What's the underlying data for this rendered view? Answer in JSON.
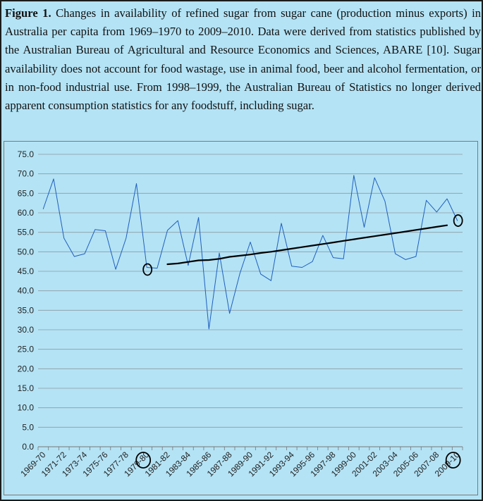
{
  "caption": {
    "label": "Figure 1.",
    "text": "Changes in availability of refined sugar from sugar cane (production minus exports) in Australia per capita from 1969–1970 to 2009–2010. Data were derived from statistics published by the Australian Bureau of Agricultural and Resource Economics and Sciences, ABARE [10]. Sugar availability does not account for food wastage, use in animal food, beer and alcohol fermentation, or in non-food industrial use. From 1998–1999, the Australian Bureau of Statistics no longer derived apparent consumption statistics for any foodstuff, including sugar."
  },
  "chart_data": {
    "type": "line",
    "title": "",
    "xlabel": "",
    "ylabel": "",
    "ylim": [
      0,
      75
    ],
    "y_ticks": [
      "0.0",
      "5.0",
      "10.0",
      "15.0",
      "20.0",
      "25.0",
      "30.0",
      "35.0",
      "40.0",
      "45.0",
      "50.0",
      "55.0",
      "60.0",
      "65.0",
      "70.0",
      "75.0"
    ],
    "grid": true,
    "x": [
      "1969-70",
      "1970-71",
      "1971-72",
      "1972-73",
      "1973-74",
      "1974-75",
      "1975-76",
      "1976-77",
      "1977-78",
      "1978-79",
      "1979-80",
      "1980-81",
      "1981-82",
      "1982-83",
      "1983-84",
      "1984-85",
      "1985-86",
      "1986-87",
      "1987-88",
      "1988-89",
      "1989-90",
      "1990-91",
      "1991-92",
      "1992-93",
      "1993-94",
      "1994-95",
      "1995-96",
      "1996-97",
      "1997-98",
      "1998-99",
      "1999-00",
      "2000-01",
      "2001-02",
      "2002-03",
      "2003-04",
      "2004-05",
      "2005-06",
      "2006-07",
      "2007-08",
      "2008-09",
      "2009-10"
    ],
    "x_tick_labels": [
      "1969-70",
      "1971-72",
      "1973-74",
      "1975-76",
      "1977-78",
      "1979-80",
      "1981-82",
      "1983-84",
      "1985-86",
      "1987-88",
      "1989-90",
      "1991-92",
      "1993-94",
      "1995-96",
      "1997-98",
      "1999-00",
      "2001-02",
      "2003-04",
      "2005-06",
      "2007-08",
      "2009-10"
    ],
    "series": [
      {
        "values": [
          61.0,
          68.7,
          53.5,
          48.8,
          49.5,
          55.7,
          55.4,
          45.5,
          53.5,
          67.5,
          46.0,
          45.8,
          55.5,
          58.0,
          46.5,
          58.8,
          30.2,
          49.7,
          34.2,
          44.5,
          52.5,
          44.3,
          42.6,
          57.3,
          46.3,
          46.0,
          47.5,
          54.2,
          48.5,
          48.2,
          69.6,
          56.3,
          69.0,
          63.0,
          49.5,
          48.0,
          48.8,
          63.2,
          60.2,
          63.6,
          58.0
        ],
        "color": "#1f5fbf"
      },
      {
        "values": [
          null,
          null,
          null,
          null,
          null,
          null,
          null,
          null,
          null,
          null,
          null,
          null,
          46.8,
          47.0,
          47.4,
          47.8,
          47.9,
          48.2,
          48.7,
          49.0,
          49.3,
          49.7,
          50.0,
          50.4,
          50.8,
          51.2,
          51.6,
          52.0,
          52.4,
          52.8,
          53.2,
          53.6,
          54.0,
          54.4,
          54.8,
          55.2,
          55.6,
          56.0,
          56.4,
          56.8,
          null
        ],
        "color": "#000000"
      }
    ],
    "annotations": [
      "hand-drawn circle near 1979-80 value",
      "hand-drawn circle near 2009-10 value",
      "circled tick label 80",
      "circled tick label 10"
    ]
  }
}
